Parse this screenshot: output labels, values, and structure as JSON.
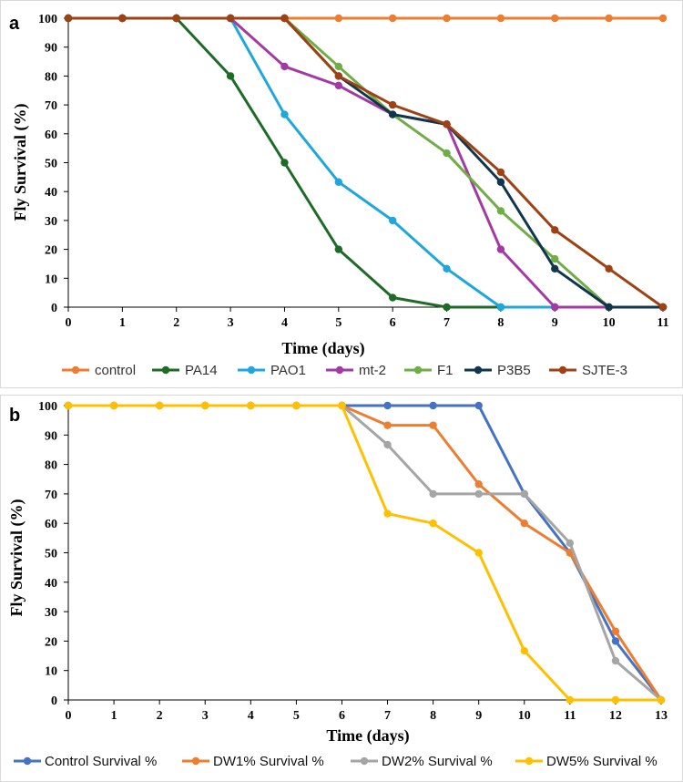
{
  "chart_data": [
    {
      "type": "line",
      "panel_label": "a",
      "xlabel": "Time (days)",
      "ylabel": "Fly Survival (%)",
      "xlim": [
        0,
        11
      ],
      "ylim": [
        0,
        100
      ],
      "x": [
        0,
        1,
        2,
        3,
        4,
        5,
        6,
        7,
        8,
        9,
        10,
        11
      ],
      "yticks": [
        "0",
        "10",
        "20",
        "30",
        "40",
        "50",
        "60",
        "70",
        "80",
        "90",
        "100"
      ],
      "xticks": [
        "0",
        "1",
        "2",
        "3",
        "4",
        "5",
        "6",
        "7",
        "8",
        "9",
        "10",
        "11"
      ],
      "legend_position": "bottom",
      "series": [
        {
          "name": "control",
          "color": "#ed7d31",
          "values": [
            100,
            100,
            100,
            100,
            100,
            100,
            100,
            100,
            100,
            100,
            100,
            100
          ]
        },
        {
          "name": "PA14",
          "color": "#1e6b27",
          "values": [
            100,
            100,
            100,
            80,
            50,
            20,
            3.3,
            0,
            0,
            0,
            0,
            0
          ]
        },
        {
          "name": "PAO1",
          "color": "#1fa7dc",
          "values": [
            100,
            100,
            100,
            100,
            66.7,
            43.3,
            30,
            13.3,
            0,
            0,
            0,
            0
          ]
        },
        {
          "name": "mt-2",
          "color": "#a33aa3",
          "values": [
            100,
            100,
            100,
            100,
            83.3,
            76.7,
            66.7,
            63.3,
            20,
            0,
            0,
            0
          ]
        },
        {
          "name": "F1",
          "color": "#70ad47",
          "values": [
            100,
            100,
            100,
            100,
            100,
            83.3,
            66.7,
            53.3,
            33.3,
            16.7,
            0,
            0
          ]
        },
        {
          "name": "P3B5",
          "color": "#10364e",
          "values": [
            100,
            100,
            100,
            100,
            100,
            80,
            66.7,
            63.3,
            43.3,
            13.3,
            0,
            0
          ]
        },
        {
          "name": "SJTE-3",
          "color": "#9e4215",
          "values": [
            100,
            100,
            100,
            100,
            100,
            80,
            70,
            63.3,
            46.7,
            26.7,
            13.3,
            0
          ]
        }
      ]
    },
    {
      "type": "line",
      "panel_label": "b",
      "xlabel": "Time (days)",
      "ylabel": "Fly Survival (%)",
      "xlim": [
        0,
        13
      ],
      "ylim": [
        0,
        100
      ],
      "x": [
        0,
        1,
        2,
        3,
        4,
        5,
        6,
        7,
        8,
        9,
        10,
        11,
        12,
        13
      ],
      "yticks": [
        "0",
        "10",
        "20",
        "30",
        "40",
        "50",
        "60",
        "70",
        "80",
        "90",
        "100"
      ],
      "xticks": [
        "0",
        "1",
        "2",
        "3",
        "4",
        "5",
        "6",
        "7",
        "8",
        "9",
        "10",
        "11",
        "12",
        "13"
      ],
      "legend_position": "bottom",
      "series": [
        {
          "name": "Control Survival %",
          "color": "#4472c4",
          "values": [
            100,
            100,
            100,
            100,
            100,
            100,
            100,
            100,
            100,
            100,
            70,
            50,
            20,
            0
          ]
        },
        {
          "name": "DW1% Survival %",
          "color": "#ed7d31",
          "values": [
            100,
            100,
            100,
            100,
            100,
            100,
            100,
            93.3,
            93.3,
            73.3,
            60,
            50,
            23.3,
            0
          ]
        },
        {
          "name": "DW2% Survival %",
          "color": "#a5a5a5",
          "values": [
            100,
            100,
            100,
            100,
            100,
            100,
            100,
            86.7,
            70,
            70,
            70,
            53.3,
            13.3,
            0
          ]
        },
        {
          "name": "DW5% Survival %",
          "color": "#ffc000",
          "values": [
            100,
            100,
            100,
            100,
            100,
            100,
            100,
            63.3,
            60,
            50,
            16.7,
            0,
            0,
            0
          ]
        }
      ]
    }
  ]
}
